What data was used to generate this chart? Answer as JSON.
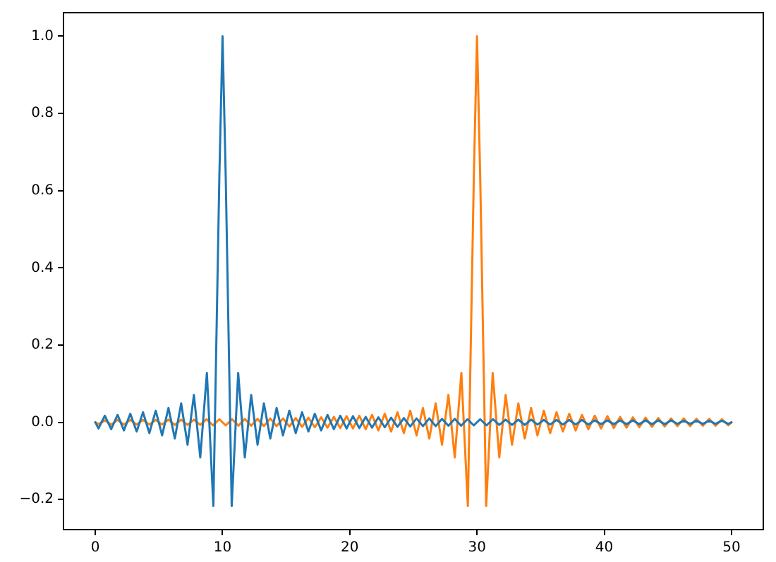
{
  "chart_data": {
    "type": "line",
    "xlim": [
      -2.5,
      52.5
    ],
    "ylim": [
      -0.278,
      1.061
    ],
    "xticks": [
      0,
      10,
      20,
      30,
      40,
      50
    ],
    "yticks": [
      {
        "value": -0.2,
        "label": "−0.2"
      },
      {
        "value": 0,
        "label": "0.0"
      },
      {
        "value": 0.2,
        "label": "0.2"
      },
      {
        "value": 0.4,
        "label": "0.4"
      },
      {
        "value": 0.6,
        "label": "0.6"
      },
      {
        "value": 0.8,
        "label": "0.8"
      },
      {
        "value": 1,
        "label": "1.0"
      }
    ],
    "grid": false,
    "legend": false,
    "marker": "none",
    "line_style": "solid",
    "series": [
      {
        "color": "#1f77b4",
        "x": [
          0,
          0.25,
          0.75,
          1.25,
          1.75,
          2.25,
          2.75,
          3.25,
          3.75,
          4.25,
          4.75,
          5.25,
          5.75,
          6.25,
          6.75,
          7.25,
          7.75,
          8.25,
          8.77,
          9.28,
          9.75,
          10,
          10.25,
          10.72,
          11.23,
          11.75,
          12.25,
          12.75,
          13.25,
          13.75,
          14.25,
          14.75,
          15.25,
          15.75,
          16.25,
          16.75,
          17.25,
          17.75,
          18.25,
          18.75,
          19.25,
          19.75,
          20.25,
          20.75,
          21.25,
          21.75,
          22.25,
          22.75,
          23.25,
          23.75,
          24.25,
          24.75,
          25.25,
          25.75,
          26.25,
          26.75,
          27.25,
          27.75,
          28.25,
          28.75,
          29.25,
          29.75,
          30.25,
          30.75,
          31.25,
          31.75,
          32.25,
          32.75,
          33.25,
          33.75,
          34.25,
          34.75,
          35.25,
          35.75,
          36.25,
          36.75,
          37.25,
          37.75,
          38.25,
          38.75,
          39.25,
          39.75,
          40.25,
          40.75,
          41.25,
          41.75,
          42.25,
          42.75,
          43.25,
          43.75,
          44.25,
          44.75,
          45.25,
          45.75,
          46.25,
          46.75,
          47.25,
          47.75,
          48.25,
          48.75,
          49.25,
          49.75,
          50
        ],
        "values": [
          0,
          -0.016,
          0.017,
          -0.018,
          0.019,
          -0.021,
          0.022,
          -0.024,
          0.026,
          -0.028,
          0.03,
          -0.034,
          0.037,
          -0.042,
          0.049,
          -0.058,
          0.071,
          -0.091,
          0.128,
          -0.217,
          0.637,
          1,
          0.637,
          -0.217,
          0.128,
          -0.091,
          0.071,
          -0.058,
          0.049,
          -0.042,
          0.037,
          -0.034,
          0.03,
          -0.028,
          0.026,
          -0.024,
          0.022,
          -0.021,
          0.019,
          -0.018,
          0.017,
          -0.016,
          0.016,
          -0.015,
          0.014,
          -0.014,
          0.013,
          -0.013,
          0.012,
          -0.012,
          0.011,
          -0.011,
          0.01,
          -0.01,
          0.01,
          -0.01,
          0.009,
          -0.009,
          0.009,
          -0.009,
          0.008,
          -0.008,
          0.008,
          -0.008,
          0.008,
          -0.007,
          0.007,
          -0.007,
          0.007,
          -0.007,
          0.007,
          -0.006,
          0.006,
          -0.006,
          0.006,
          -0.006,
          0.006,
          -0.006,
          0.006,
          -0.006,
          0.005,
          -0.005,
          0.005,
          -0.005,
          0.005,
          -0.005,
          0.005,
          -0.005,
          0.005,
          -0.005,
          0.005,
          -0.005,
          0.005,
          -0.004,
          0.004,
          -0.004,
          0.004,
          -0.004,
          0.004,
          -0.004,
          0.004,
          -0.004,
          0
        ]
      },
      {
        "color": "#ff7f0e",
        "x": [
          0,
          0.25,
          0.75,
          1.25,
          1.75,
          2.25,
          2.75,
          3.25,
          3.75,
          4.25,
          4.75,
          5.25,
          5.75,
          6.25,
          6.75,
          7.25,
          7.75,
          8.25,
          8.75,
          9.25,
          9.75,
          10.25,
          10.75,
          11.25,
          11.75,
          12.25,
          12.75,
          13.25,
          13.75,
          14.25,
          14.75,
          15.25,
          15.75,
          16.25,
          16.75,
          17.25,
          17.75,
          18.25,
          18.75,
          19.25,
          19.75,
          20.25,
          20.75,
          21.25,
          21.75,
          22.25,
          22.75,
          23.25,
          23.75,
          24.25,
          24.75,
          25.25,
          25.75,
          26.25,
          26.75,
          27.25,
          27.75,
          28.25,
          28.77,
          29.28,
          29.75,
          30,
          30.25,
          30.72,
          31.23,
          31.75,
          32.25,
          32.75,
          33.25,
          33.75,
          34.25,
          34.75,
          35.25,
          35.75,
          36.25,
          36.75,
          37.25,
          37.75,
          38.25,
          38.75,
          39.25,
          39.75,
          40.25,
          40.75,
          41.25,
          41.75,
          42.25,
          42.75,
          43.25,
          43.75,
          44.25,
          44.75,
          45.25,
          45.75,
          46.25,
          46.75,
          47.25,
          47.75,
          48.25,
          48.75,
          49.25,
          49.75,
          50
        ],
        "values": [
          0,
          -0.005,
          0.005,
          -0.006,
          0.006,
          -0.006,
          0.006,
          -0.006,
          0.006,
          -0.006,
          0.006,
          -0.006,
          0.007,
          -0.007,
          0.007,
          -0.007,
          0.007,
          -0.007,
          0.008,
          -0.008,
          0.008,
          -0.008,
          0.008,
          -0.009,
          0.009,
          -0.009,
          0.009,
          -0.01,
          0.01,
          -0.01,
          0.01,
          -0.011,
          0.011,
          -0.012,
          0.012,
          -0.013,
          0.013,
          -0.014,
          0.014,
          -0.015,
          0.016,
          -0.016,
          0.017,
          -0.018,
          0.019,
          -0.021,
          0.022,
          -0.024,
          0.026,
          -0.028,
          0.03,
          -0.034,
          0.037,
          -0.042,
          0.049,
          -0.058,
          0.071,
          -0.091,
          0.128,
          -0.217,
          0.637,
          1,
          0.637,
          -0.217,
          0.128,
          -0.091,
          0.071,
          -0.058,
          0.049,
          -0.042,
          0.037,
          -0.034,
          0.03,
          -0.028,
          0.026,
          -0.024,
          0.022,
          -0.021,
          0.019,
          -0.018,
          0.017,
          -0.016,
          0.016,
          -0.015,
          0.014,
          -0.014,
          0.013,
          -0.013,
          0.012,
          -0.012,
          0.011,
          -0.011,
          0.01,
          -0.01,
          0.01,
          -0.01,
          0.009,
          -0.009,
          0.009,
          -0.009,
          0.008,
          -0.008,
          0
        ]
      }
    ]
  }
}
